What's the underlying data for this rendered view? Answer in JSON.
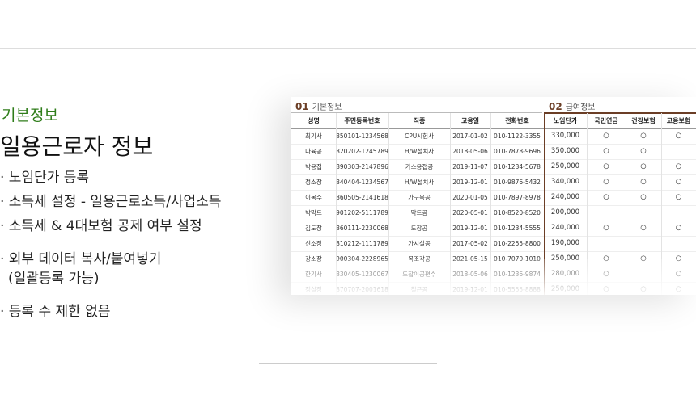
{
  "left": {
    "eyebrow": "기본정보",
    "title": "일용근로자 정보",
    "bullets": [
      "· 노임단가 등록",
      "· 소득세 설정 - 일용근로소득/사업소득",
      "· 소득세 & 4대보험 공제 여부 설정",
      "· 외부 데이터 복사/붙여넣기",
      "(일괄등록 가능)",
      "· 등록 수 제한 없음"
    ]
  },
  "table": {
    "sections": [
      {
        "number": "01",
        "label": "기본정보"
      },
      {
        "number": "02",
        "label": "급여정보"
      }
    ],
    "headers": [
      "성명",
      "주민등록번호",
      "직종",
      "고용일",
      "전화번호",
      "노임단가",
      "국민연금",
      "건강보험",
      "고용보험"
    ],
    "rows": [
      [
        "최기사",
        "850101-1234568",
        "CPU시험사",
        "2017-01-02",
        "010-1122-3355",
        "330,000",
        "○",
        "○",
        "○"
      ],
      [
        "나육공",
        "820202-1245789",
        "H/W설치사",
        "2018-05-06",
        "010-7878-9696",
        "350,000",
        "○",
        "○",
        null
      ],
      [
        "박용접",
        "890303-2147896",
        "가스용접공",
        "2019-11-07",
        "010-1234-5678",
        "250,000",
        "○",
        "○",
        "○"
      ],
      [
        "정소장",
        "840404-1234567",
        "H/W설치사",
        "2019-12-01",
        "010-9876-5432",
        "340,000",
        "○",
        "○",
        "○"
      ],
      [
        "이목수",
        "860505-2141618",
        "가구목공",
        "2020-01-05",
        "010-7897-8978",
        "240,000",
        "○",
        "○",
        "○"
      ],
      [
        "박막트",
        "901202-5111789",
        "막트공",
        "2020-05-01",
        "010-8520-8520",
        "200,000",
        null,
        null,
        null
      ],
      [
        "김도장",
        "860111-2230068",
        "도장공",
        "2019-12-01",
        "010-1234-5555",
        "240,000",
        "○",
        "○",
        "○"
      ],
      [
        "신소장",
        "810212-1111789",
        "가시설공",
        "2017-05-02",
        "010-2255-8800",
        "190,000",
        null,
        null,
        null
      ],
      [
        "강소장",
        "900304-2228965",
        "목조각공",
        "2021-05-15",
        "010-7070-1010",
        "250,000",
        "○",
        "○",
        "○"
      ],
      [
        "한기사",
        "830405-1230067",
        "도잡이공편수",
        "2018-05-06",
        "010-1236-9874",
        "280,000",
        "○",
        null,
        "○"
      ],
      [
        "정실장",
        "870707-2001618",
        "철근공",
        "2019-12-01",
        "010-5555-8888",
        "250,000",
        "○",
        "○",
        "○"
      ]
    ]
  }
}
